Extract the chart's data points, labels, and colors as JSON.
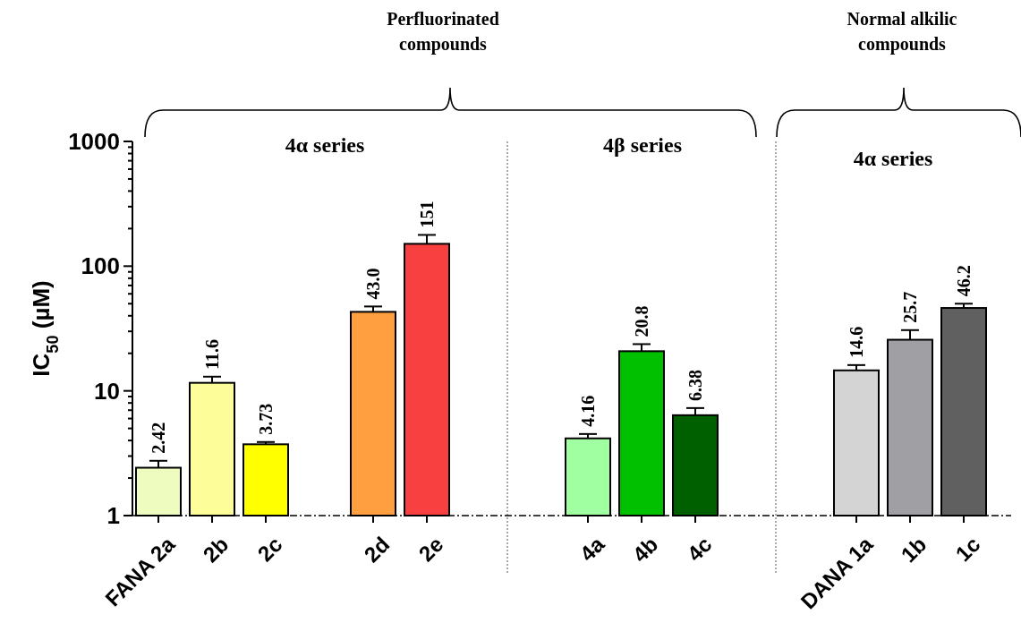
{
  "chart_data": {
    "type": "bar",
    "ylabel": "IC$_{50}$ (µM)",
    "log": true,
    "categories": [
      "FANA 2a",
      "2b",
      "2c",
      null,
      "2d",
      "2e",
      null,
      null,
      "4a",
      "4b",
      "4c",
      null,
      null,
      "DANA 1a",
      "1b",
      "1c"
    ],
    "values": [
      2.42,
      11.6,
      3.73,
      null,
      43.0,
      151,
      null,
      null,
      4.16,
      20.8,
      6.38,
      null,
      null,
      14.6,
      25.7,
      46.2
    ],
    "errors": [
      0.33,
      1.4,
      0.16,
      null,
      4.5,
      27,
      null,
      null,
      0.35,
      2.9,
      0.9,
      null,
      null,
      1.5,
      5,
      3.8
    ],
    "value_labels": [
      "2.42",
      "11.6",
      "3.73",
      null,
      "43.0",
      "151",
      null,
      null,
      "4.16",
      "20.8",
      "6.38",
      null,
      null,
      "14.6",
      "25.7",
      "46.2"
    ],
    "colors": [
      "#eefcc0",
      "#fdfd9a",
      "#ffff00",
      null,
      "#ff9f40",
      "#f84040",
      null,
      null,
      "#a0ffa0",
      "#00c000",
      "#006000",
      null,
      null,
      "#d4d4d4",
      "#a0a0a4",
      "#606060"
    ],
    "ylim": [
      1,
      1000
    ],
    "yticks": [
      1,
      {
        "value": 2,
        "label": null
      },
      {
        "value": 3,
        "label": null
      },
      {
        "value": 4,
        "label": null
      },
      {
        "value": 5,
        "label": null
      },
      {
        "value": 6,
        "label": null
      },
      {
        "value": 7,
        "label": null
      },
      {
        "value": 8,
        "label": null
      },
      {
        "value": 9,
        "label": null
      },
      10,
      {
        "value": 20,
        "label": null
      },
      {
        "value": 30,
        "label": null
      },
      {
        "value": 40,
        "label": null
      },
      {
        "value": 50,
        "label": null
      },
      {
        "value": 60,
        "label": null
      },
      {
        "value": 70,
        "label": null
      },
      {
        "value": 80,
        "label": null
      },
      {
        "value": 90,
        "label": null
      },
      100,
      {
        "value": 200,
        "label": null
      },
      {
        "value": 300,
        "label": null
      },
      {
        "value": 400,
        "label": null
      },
      {
        "value": 500,
        "label": null
      },
      {
        "value": 600,
        "label": null
      },
      {
        "value": 700,
        "label": null
      },
      {
        "value": 800,
        "label": null
      },
      {
        "value": 900,
        "label": null
      },
      1000
    ],
    "grid": false,
    "annotations": [
      "Perfluorinated compounds",
      "Normal alkilic compounds",
      "4α series",
      "4β series",
      "4α series"
    ]
  }
}
